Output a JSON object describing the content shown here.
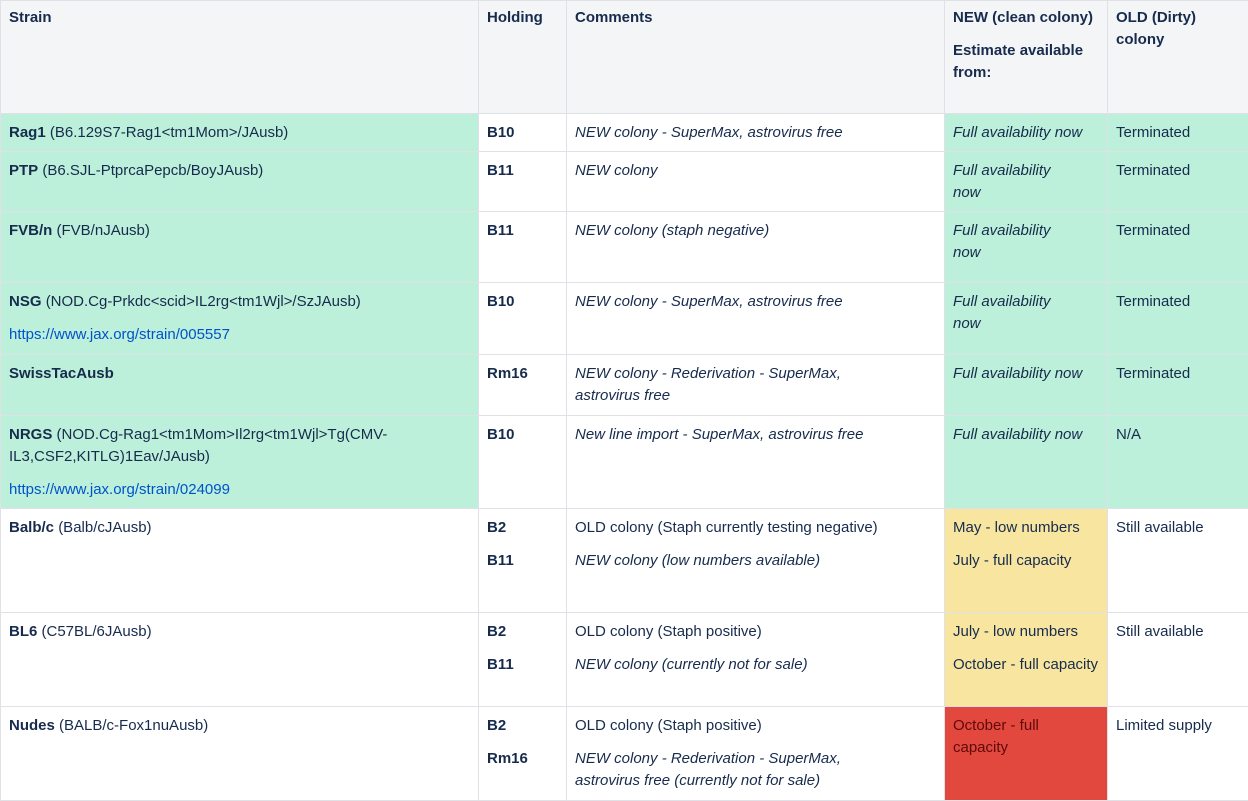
{
  "headers": {
    "strain": "Strain",
    "holding": "Holding",
    "comments": "Comments",
    "new_line1": "NEW (clean colony)",
    "new_line2": "Estimate available from:",
    "old": "OLD (Dirty) colony"
  },
  "rows": [
    {
      "name": "Rag1",
      "detail": "(B6.129S7-Rag1<tm1Mom>/JAusb)",
      "holding": [
        "B10"
      ],
      "comments": [
        "NEW colony - SuperMax, astrovirus free"
      ],
      "new": [
        "Full availability now"
      ],
      "old": "Terminated"
    },
    {
      "name": "PTP",
      "detail": "(B6.SJL-PtprcaPepcb/BoyJAusb)",
      "holding": [
        "B11"
      ],
      "comments": [
        "NEW colony"
      ],
      "new": [
        "Full availability now"
      ],
      "old": "Terminated"
    },
    {
      "name": "FVB/n",
      "detail": "(FVB/nJAusb)",
      "holding": [
        "B11"
      ],
      "comments": [
        "NEW colony (staph negative)"
      ],
      "new": [
        "Full availability now"
      ],
      "old": "Terminated"
    },
    {
      "name": "NSG",
      "detail": "(NOD.Cg-Prkdc<scid>IL2rg<tm1Wjl>/SzJAusb)",
      "link": "https://www.jax.org/strain/005557",
      "holding": [
        "B10"
      ],
      "comments": [
        "NEW colony - SuperMax, astrovirus free"
      ],
      "new": [
        "Full availability now"
      ],
      "old": "Terminated"
    },
    {
      "name": "SwissTacAusb",
      "detail": "",
      "holding": [
        "Rm16"
      ],
      "comments": [
        "NEW colony - Rederivation - SuperMax, astrovirus free"
      ],
      "new": [
        "Full availability now"
      ],
      "old": "Terminated"
    },
    {
      "name": "NRGS",
      "detail": "(NOD.Cg-Rag1<tm1Mom>Il2rg<tm1Wjl>Tg(CMV-IL3,CSF2,KITLG)1Eav/JAusb)",
      "link": "https://www.jax.org/strain/024099",
      "holding": [
        "B10"
      ],
      "comments": [
        "New line import - SuperMax, astrovirus free"
      ],
      "new": [
        "Full availability now"
      ],
      "old": "N/A"
    },
    {
      "name": "Balb/c",
      "detail": "(Balb/cJAusb)",
      "holding": [
        "B2",
        "B11"
      ],
      "comments": [
        "OLD colony (Staph currently testing negative)",
        "NEW colony (low numbers available)"
      ],
      "new": [
        "May - low numbers",
        "July - full capacity"
      ],
      "old": "Still available"
    },
    {
      "name": "BL6",
      "detail": "(C57BL/6JAusb)",
      "holding": [
        "B2",
        "B11"
      ],
      "comments": [
        "OLD colony (Staph positive)",
        "NEW colony (currently not for sale)"
      ],
      "new": [
        "July - low numbers",
        "October - full capacity"
      ],
      "old": "Still available"
    },
    {
      "name": "Nudes",
      "detail": "(BALB/c-Fox1nuAusb)",
      "holding": [
        "B2",
        "Rm16"
      ],
      "comments": [
        "OLD colony (Staph positive)",
        "NEW colony - Rederivation - SuperMax, astrovirus free (currently not for sale)"
      ],
      "new": [
        "October - full capacity"
      ],
      "old": "Limited supply"
    }
  ],
  "colors": {
    "green": "#bcf0da",
    "yellow": "#f8e6a0",
    "red": "#e2483d",
    "header": "#f4f5f7",
    "link": "#0052cc"
  }
}
